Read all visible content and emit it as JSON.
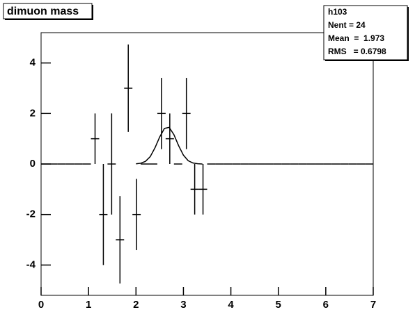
{
  "chart_data": {
    "type": "histogram",
    "title": "dimuon mass",
    "bins": [
      0,
      0.175,
      0.35,
      0.525,
      0.7,
      0.875,
      1.05,
      1.225,
      1.4,
      1.575,
      1.75,
      1.925,
      2.1,
      2.275,
      2.45,
      2.625,
      2.8,
      2.975,
      3.15,
      3.325,
      3.5,
      3.675,
      3.85,
      4.025,
      4.2,
      4.375,
      4.55,
      4.725,
      4.9,
      5.075,
      5.25,
      5.425,
      5.6,
      5.775,
      5.95,
      6.125,
      6.3,
      6.475,
      6.65,
      6.825,
      7
    ],
    "values": [
      0,
      0,
      0,
      0,
      0,
      0,
      1,
      -2,
      0,
      -3,
      3,
      -2,
      0,
      0,
      2,
      1,
      0,
      2,
      -1,
      -1,
      0,
      0,
      0,
      0,
      0,
      0,
      0,
      0,
      0,
      0,
      0,
      0,
      0,
      0,
      0,
      0,
      0,
      0,
      0,
      0
    ],
    "errors": [
      0,
      0,
      0,
      0,
      0,
      0,
      1,
      2,
      2,
      1.73,
      1.73,
      1.41,
      0,
      0,
      1.41,
      1,
      0,
      1.41,
      1,
      1,
      0,
      0,
      0,
      0,
      0,
      0,
      0,
      0,
      0,
      0,
      0,
      0,
      0,
      0,
      0,
      0,
      0,
      0,
      0,
      0
    ],
    "color": "#000000",
    "fit": {
      "x": [
        2.0,
        2.1,
        2.2,
        2.3,
        2.4,
        2.5,
        2.6,
        2.7,
        2.8,
        2.9,
        3.0,
        3.1,
        3.2,
        3.3,
        3.4
      ],
      "values": [
        0.006,
        0.03,
        0.105,
        0.29,
        0.64,
        1.07,
        1.41,
        1.45,
        1.16,
        0.72,
        0.35,
        0.13,
        0.04,
        0.01,
        0
      ]
    },
    "xlim": [
      0,
      7
    ],
    "xticks": [
      0,
      1,
      2,
      3,
      4,
      5,
      6,
      7
    ],
    "ylim": [
      -5.2,
      5.2
    ],
    "yticks": [
      -4,
      -2,
      0,
      2,
      4
    ],
    "stats": {
      "name": "h103",
      "lines": [
        "Nent = 24",
        "Mean  =  1.973",
        "RMS   = 0.6798"
      ]
    }
  }
}
